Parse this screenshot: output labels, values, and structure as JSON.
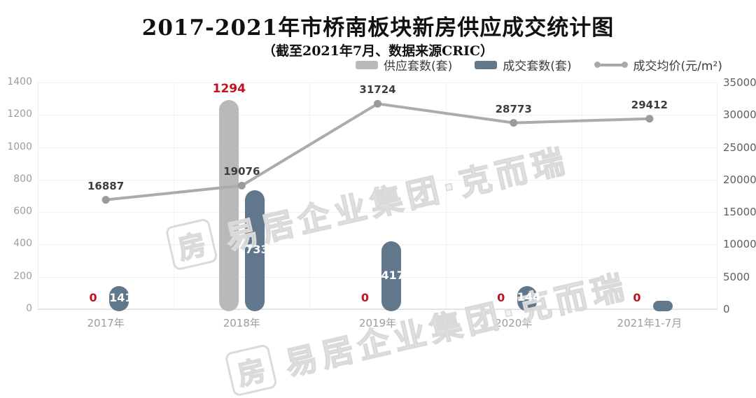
{
  "watermark": {
    "text": "易居企业集团·克而瑞",
    "logo_glyph": "房"
  },
  "chart_data": {
    "type": "bar",
    "title": "2017-2021年市桥南板块新房供应成交统计图",
    "subtitle": "（截至2021年7月、数据来源CRIC）",
    "categories": [
      "2017年",
      "2018年",
      "2019年",
      "2020年",
      "2021年1-7月"
    ],
    "series": [
      {
        "name": "供应套数(套)",
        "kind": "bar",
        "axis": "left",
        "values": [
          0,
          1294,
          0,
          0,
          0
        ],
        "labels": [
          "0",
          "1294",
          "0",
          "0",
          "0"
        ],
        "color": "#b7b9bb",
        "label_color": "#c0121f"
      },
      {
        "name": "成交套数(套)",
        "kind": "bar",
        "axis": "left",
        "values": [
          141,
          733,
          417,
          144,
          50
        ],
        "labels": [
          "141",
          "733",
          "417",
          "144",
          ""
        ],
        "color": "#61788c",
        "label_color": "#ffffff"
      },
      {
        "name": "成交均价(元/m²)",
        "kind": "line",
        "axis": "right",
        "values": [
          16887,
          19076,
          31724,
          28773,
          29412
        ],
        "labels": [
          "16887",
          "19076",
          "31724",
          "28773",
          "29412"
        ],
        "color": "#ababab",
        "marker_color": "#9b9b9b",
        "label_color": "#3d3d3d"
      }
    ],
    "left_axis": {
      "min": 0,
      "max": 1400,
      "ticks": [
        0,
        200,
        400,
        600,
        800,
        1000,
        1200,
        1400
      ]
    },
    "right_axis": {
      "min": 0,
      "max": 35000,
      "ticks": [
        0,
        5000,
        10000,
        15000,
        20000,
        25000,
        30000,
        35000
      ]
    },
    "grid": true,
    "legend_position": "top",
    "colors": {
      "grid_line": "#f4f0f1",
      "axis_line": "#dcdcdc",
      "left_tick_text": "#9c9c9c",
      "right_tick_text": "#5f5f5f",
      "x_tick_text": "#9c9c9c",
      "red_label": "#c0121f",
      "price_label": "#3d3d3d",
      "watermark": "#dadada"
    }
  }
}
